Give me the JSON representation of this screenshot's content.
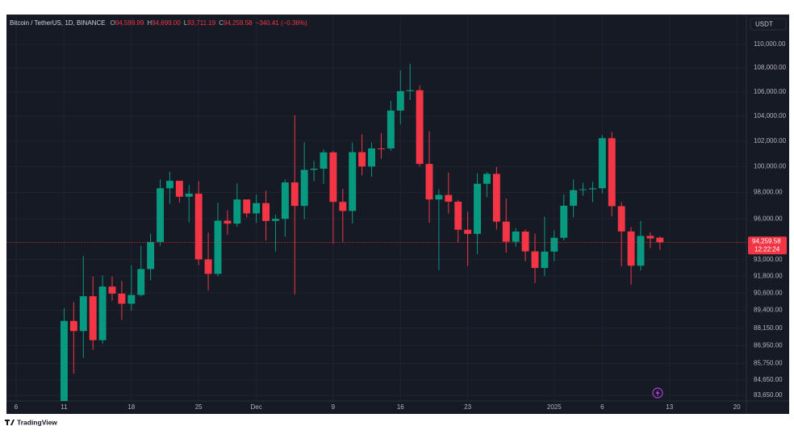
{
  "header": {
    "symbol": "Bitcoin / TetherUS, 1D, BINANCE",
    "ohlc": [
      {
        "key": "O",
        "value": "94,599.99"
      },
      {
        "key": "H",
        "value": "94,699.00"
      },
      {
        "key": "L",
        "value": "93,711.19"
      },
      {
        "key": "C",
        "value": "94,259.58"
      }
    ],
    "change": "−340.41 (−0.36%)",
    "currency": "USDT"
  },
  "footer": {
    "brand": "TradingView"
  },
  "chart_data": {
    "type": "candlestick",
    "log_scale": true,
    "grid": true,
    "colors": {
      "up": "#089981",
      "down": "#f23645"
    },
    "x": [
      "2024-11-11",
      "2024-11-12",
      "2024-11-13",
      "2024-11-14",
      "2024-11-15",
      "2024-11-16",
      "2024-11-17",
      "2024-11-18",
      "2024-11-19",
      "2024-11-20",
      "2024-11-21",
      "2024-11-22",
      "2024-11-23",
      "2024-11-24",
      "2024-11-25",
      "2024-11-26",
      "2024-11-27",
      "2024-11-28",
      "2024-11-29",
      "2024-11-30",
      "2024-12-01",
      "2024-12-02",
      "2024-12-03",
      "2024-12-04",
      "2024-12-05",
      "2024-12-06",
      "2024-12-07",
      "2024-12-08",
      "2024-12-09",
      "2024-12-10",
      "2024-12-11",
      "2024-12-12",
      "2024-12-13",
      "2024-12-14",
      "2024-12-15",
      "2024-12-16",
      "2024-12-17",
      "2024-12-18",
      "2024-12-19",
      "2024-12-20",
      "2024-12-21",
      "2024-12-22",
      "2024-12-23",
      "2024-12-24",
      "2024-12-25",
      "2024-12-26",
      "2024-12-27",
      "2024-12-28",
      "2024-12-29",
      "2024-12-30",
      "2024-12-31",
      "2025-01-01",
      "2025-01-02",
      "2025-01-03",
      "2025-01-04",
      "2025-01-05",
      "2025-01-06",
      "2025-01-07",
      "2025-01-08",
      "2025-01-09",
      "2025-01-10",
      "2025-01-11",
      "2025-01-12"
    ],
    "open": [
      80370,
      88648,
      87953,
      90375,
      87325,
      91056,
      90558,
      89846,
      90465,
      92311,
      94286,
      98317,
      98892,
      97672,
      97900,
      93010,
      91965,
      95863,
      95643,
      97460,
      96407,
      97185,
      95840,
      96002,
      98768,
      96972,
      99740,
      99831,
      101109,
      97276,
      96593,
      101125,
      100000,
      101424,
      101420,
      104463,
      106058,
      106133,
      100204,
      97461,
      97805,
      97291,
      95186,
      94881,
      98663,
      99429,
      95792,
      94300,
      95050,
      93590,
      92390,
      93576,
      94591,
      96984,
      98174,
      98236,
      98314,
      102235,
      96954,
      95060,
      92552,
      94727,
      94599.99
    ],
    "high": [
      89530,
      89956,
      93265,
      91790,
      91850,
      91779,
      91449,
      92594,
      94002,
      94900,
      98988,
      99588,
      98892,
      98564,
      98871,
      94973,
      97208,
      96650,
      98693,
      97463,
      97836,
      98130,
      96305,
      99000,
      104088,
      101898,
      100439,
      101350,
      101215,
      98270,
      101888,
      102540,
      101895,
      102650,
      105250,
      107793,
      108353,
      106524,
      102800,
      98233,
      99540,
      97448,
      96538,
      99487,
      99569,
      99963,
      97544,
      95300,
      95200,
      94903,
      96150,
      95151,
      97839,
      98976,
      98734,
      98813,
      102482,
      102724,
      97258,
      95382,
      95836,
      94999,
      94699
    ],
    "low": [
      80216,
      85072,
      86127,
      86668,
      87073,
      90056,
      88722,
      89376,
      90358,
      91500,
      94000,
      97122,
      97232,
      95734,
      92600,
      90791,
      91792,
      94827,
      95407,
      96092,
      95693,
      94395,
      93578,
      94659,
      90500,
      95981,
      98844,
      98657,
      94150,
      94256,
      95658,
      99311,
      99205,
      100610,
      101237,
      103333,
      105321,
      100000,
      95700,
      92232,
      96398,
      94250,
      92520,
      93385,
      97632,
      95199,
      93500,
      93930,
      92881,
      91317,
      91800,
      92868,
      94392,
      96100,
      97735,
      97254,
      97926,
      96181,
      92500,
      91203,
      92206,
      93831,
      93711.19
    ],
    "close": [
      88648,
      87953,
      90375,
      87325,
      91056,
      90558,
      89846,
      90465,
      92311,
      94286,
      98317,
      98892,
      97672,
      97900,
      93010,
      91965,
      95863,
      95643,
      97460,
      96407,
      97185,
      95840,
      96002,
      98768,
      96972,
      99740,
      99831,
      101109,
      97276,
      96593,
      101125,
      100000,
      101424,
      101420,
      104463,
      106058,
      106133,
      100204,
      97461,
      97805,
      97291,
      95186,
      94881,
      98663,
      99429,
      95792,
      94300,
      95050,
      93590,
      92390,
      93576,
      94591,
      96984,
      98174,
      98236,
      98314,
      102235,
      96954,
      95060,
      92552,
      94727,
      94545,
      94259.58
    ],
    "last_price": {
      "value": 94259.58,
      "label": "94,259.58",
      "countdown": "12:22:24"
    },
    "ylim": [
      83280,
      112590
    ],
    "yticks": [
      {
        "value": 110000,
        "label": "110,000.00"
      },
      {
        "value": 108000,
        "label": "108,000.00"
      },
      {
        "value": 106000,
        "label": "106,000.00"
      },
      {
        "value": 104000,
        "label": "104,000.00"
      },
      {
        "value": 102000,
        "label": "102,000.00"
      },
      {
        "value": 100000,
        "label": "100,000.00"
      },
      {
        "value": 98000,
        "label": "98,000.00"
      },
      {
        "value": 96000,
        "label": "96,000.00"
      },
      {
        "value": 93000,
        "label": "93,000.00"
      },
      {
        "value": 91800,
        "label": "91,800.00"
      },
      {
        "value": 90600,
        "label": "90,600.00"
      },
      {
        "value": 89400,
        "label": "89,400.00"
      },
      {
        "value": 88150,
        "label": "88,150.00"
      },
      {
        "value": 86950,
        "label": "86,950.00"
      },
      {
        "value": 85750,
        "label": "85,750.00"
      },
      {
        "value": 84650,
        "label": "84,650.00"
      },
      {
        "value": 83650,
        "label": "83,650.00"
      }
    ],
    "xlim": [
      "2024-11-05",
      "2025-01-21"
    ],
    "xticks": [
      {
        "value": "2024-11-06",
        "label": "6"
      },
      {
        "value": "2024-11-11",
        "label": "11"
      },
      {
        "value": "2024-11-18",
        "label": "18"
      },
      {
        "value": "2024-11-25",
        "label": "25"
      },
      {
        "value": "2024-12-01",
        "label": "Dec"
      },
      {
        "value": "2024-12-09",
        "label": "9"
      },
      {
        "value": "2024-12-16",
        "label": "16"
      },
      {
        "value": "2024-12-23",
        "label": "23"
      },
      {
        "value": "2025-01-01",
        "label": "2025"
      },
      {
        "value": "2025-01-06",
        "label": "6"
      },
      {
        "value": "2025-01-13",
        "label": "13"
      },
      {
        "value": "2025-01-20",
        "label": "20"
      }
    ]
  }
}
